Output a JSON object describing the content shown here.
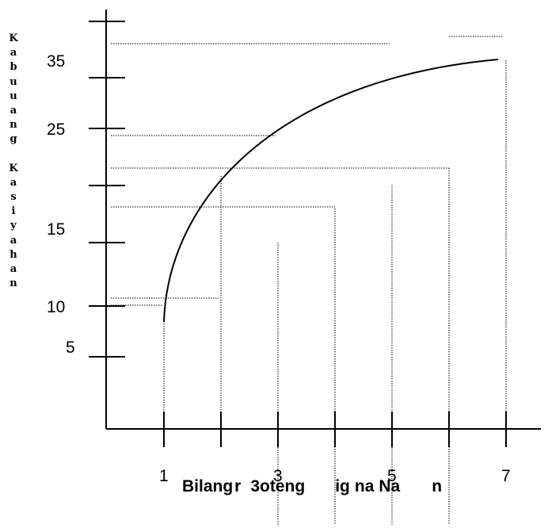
{
  "diagram": {
    "y_axis_label": "Kabuuang Kasiyahan",
    "x_axis_label": "Bilang ng Boteng Iinumin ng Nauuhaw",
    "x_axis_label_visible_parts": [
      "Bilang",
      "r",
      "3ote",
      "ng",
      "ig",
      "na",
      "Na",
      "n"
    ],
    "y_tick_labels": [
      "35",
      "25",
      "15",
      "10",
      "5"
    ],
    "x_tick_labels": [
      "1",
      "3",
      "5",
      "7"
    ]
  }
}
